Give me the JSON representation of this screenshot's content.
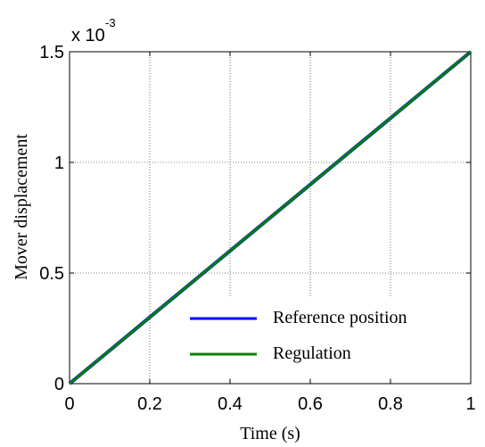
{
  "chart_data": {
    "type": "line",
    "xlabel": "Time (s)",
    "ylabel": "Mover displacement",
    "y_multiplier": {
      "base": "x 10",
      "exponent": "-3"
    },
    "xlim": [
      0,
      1
    ],
    "ylim": [
      0,
      1.5
    ],
    "x_ticks": [
      0,
      0.2,
      0.4,
      0.6,
      0.8,
      1
    ],
    "x_tick_labels": [
      "0",
      "0.2",
      "0.4",
      "0.6",
      "0.8",
      "1"
    ],
    "y_ticks": [
      0,
      0.5,
      1,
      1.5
    ],
    "y_tick_labels": [
      "0",
      "0.5",
      "1",
      "1.5"
    ],
    "grid": true,
    "legend_position": "bottom-right",
    "series": [
      {
        "name": "Reference position",
        "color": "#0000ff",
        "x": [
          0,
          0.2,
          0.4,
          0.6,
          0.8,
          1.0
        ],
        "y": [
          0,
          0.3,
          0.6,
          0.9,
          1.2,
          1.5
        ]
      },
      {
        "name": "Regulation",
        "color": "#008000",
        "x": [
          0,
          0.2,
          0.4,
          0.6,
          0.8,
          1.0
        ],
        "y": [
          0,
          0.3,
          0.6,
          0.9,
          1.2,
          1.5
        ]
      }
    ]
  }
}
